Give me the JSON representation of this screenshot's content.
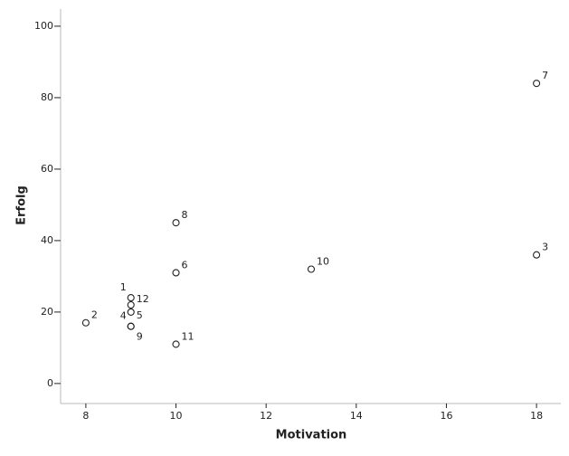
{
  "chart_data": {
    "type": "scatter",
    "x_label": "Motivation",
    "y_label": "Erfolg",
    "x": [
      9,
      8,
      18,
      9,
      9,
      10,
      18,
      10,
      9,
      13,
      10,
      9
    ],
    "values": [
      24,
      17,
      36,
      16,
      20,
      31,
      84,
      45,
      16,
      32,
      11,
      22
    ],
    "point_labels": [
      "1",
      "2",
      "3",
      "4",
      "5",
      "6",
      "7",
      "8",
      "9",
      "10",
      "11",
      "12"
    ],
    "xlim": [
      7.44,
      18.54
    ],
    "ylim": [
      -5.6,
      104.8
    ],
    "xticks": [
      8,
      10,
      12,
      14,
      16,
      18
    ],
    "yticks": [
      0,
      20,
      40,
      60,
      80,
      100
    ],
    "marker_color": "#222222"
  }
}
